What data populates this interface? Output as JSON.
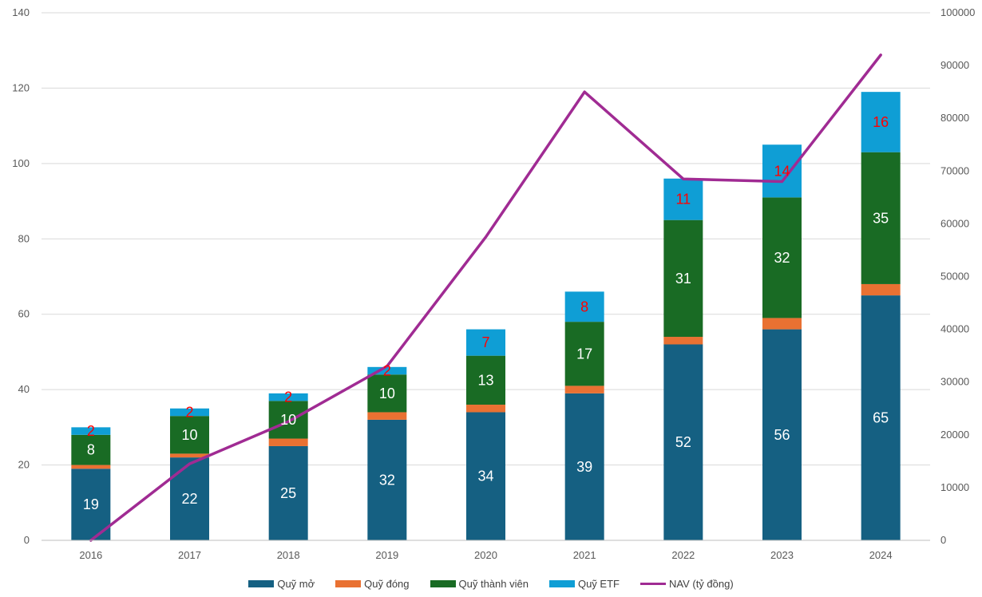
{
  "chart_data": {
    "type": "bar",
    "stacked": true,
    "categories": [
      "2016",
      "2017",
      "2018",
      "2019",
      "2020",
      "2021",
      "2022",
      "2023",
      "2024"
    ],
    "series": [
      {
        "name": "Quỹ mở",
        "color": "#156082",
        "label_color": "#ffffff",
        "values": [
          19,
          22,
          25,
          32,
          34,
          39,
          52,
          56,
          65
        ],
        "labels": [
          "19",
          "22",
          "25",
          "32",
          "34",
          "39",
          "52",
          "56",
          "65"
        ]
      },
      {
        "name": "Quỹ đóng",
        "color": "#E97132",
        "label_color": "#ffffff",
        "values": [
          1,
          1,
          2,
          2,
          2,
          2,
          2,
          3,
          3
        ],
        "labels": []
      },
      {
        "name": "Quỹ thành viên",
        "color": "#196B24",
        "label_color": "#ffffff",
        "values": [
          8,
          10,
          10,
          10,
          13,
          17,
          31,
          32,
          35
        ],
        "labels": [
          "8",
          "10",
          "10",
          "10",
          "13",
          "17",
          "31",
          "32",
          "35"
        ]
      },
      {
        "name": "Quỹ ETF",
        "color": "#0F9ED5",
        "label_color": "#ff0000",
        "values": [
          2,
          2,
          2,
          2,
          7,
          8,
          11,
          14,
          16
        ],
        "labels": [
          "2",
          "2",
          "2",
          "2",
          "7",
          "8",
          "11",
          "14",
          "16"
        ]
      }
    ],
    "line_series": {
      "name": "NAV (tỷ đồng)",
      "color": "#A02B93",
      "axis": "right",
      "values": [
        0,
        14500,
        22500,
        33000,
        57500,
        85000,
        68500,
        68000,
        92000
      ]
    },
    "y_left": {
      "min": 0,
      "max": 140,
      "step": 20,
      "ticks": [
        "0",
        "20",
        "40",
        "60",
        "80",
        "100",
        "120",
        "140"
      ]
    },
    "y_right": {
      "min": 0,
      "max": 100000,
      "step": 10000,
      "ticks": [
        "0",
        "10000",
        "20000",
        "30000",
        "40000",
        "50000",
        "60000",
        "70000",
        "80000",
        "90000",
        "100000"
      ]
    },
    "grid": true,
    "legend": {
      "position": "bottom",
      "items": [
        "Quỹ mở",
        "Quỹ đóng",
        "Quỹ thành viên",
        "Quỹ ETF",
        "NAV (tỷ đồng)"
      ]
    }
  }
}
